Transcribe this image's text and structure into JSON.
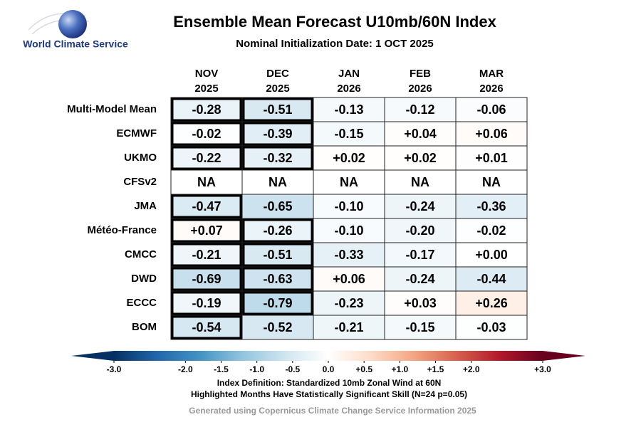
{
  "chart_data": {
    "type": "heatmap",
    "title": "Ensemble Mean Forecast U10mb/60N Index",
    "subtitle": "Nominal Initialization Date: 1 OCT 2025",
    "logo_text": "World Climate Service",
    "columns": [
      {
        "month": "NOV",
        "year": "2025"
      },
      {
        "month": "DEC",
        "year": "2025"
      },
      {
        "month": "JAN",
        "year": "2026"
      },
      {
        "month": "FEB",
        "year": "2026"
      },
      {
        "month": "MAR",
        "year": "2026"
      }
    ],
    "rows": [
      "Multi-Model Mean",
      "ECMWF",
      "UKMO",
      "CFSv2",
      "JMA",
      "Météo-France",
      "CMCC",
      "DWD",
      "ECCC",
      "BOM"
    ],
    "values": [
      [
        -0.28,
        -0.51,
        -0.13,
        -0.12,
        -0.06
      ],
      [
        -0.02,
        -0.39,
        -0.15,
        0.04,
        0.06
      ],
      [
        -0.22,
        -0.32,
        0.02,
        0.02,
        0.01
      ],
      [
        null,
        null,
        null,
        null,
        null
      ],
      [
        -0.47,
        -0.65,
        -0.1,
        -0.24,
        -0.36
      ],
      [
        0.07,
        -0.26,
        -0.1,
        -0.2,
        -0.02
      ],
      [
        -0.21,
        -0.51,
        -0.33,
        -0.17,
        0.0
      ],
      [
        -0.69,
        -0.63,
        0.06,
        -0.24,
        -0.44
      ],
      [
        -0.19,
        -0.79,
        -0.23,
        0.03,
        0.26
      ],
      [
        -0.54,
        -0.52,
        -0.21,
        -0.15,
        -0.03
      ]
    ],
    "value_labels": [
      [
        "-0.28",
        "-0.51",
        "-0.13",
        "-0.12",
        "-0.06"
      ],
      [
        "-0.02",
        "-0.39",
        "-0.15",
        "+0.04",
        "+0.06"
      ],
      [
        "-0.22",
        "-0.32",
        "+0.02",
        "+0.02",
        "+0.01"
      ],
      [
        "NA",
        "NA",
        "NA",
        "NA",
        "NA"
      ],
      [
        "-0.47",
        "-0.65",
        "-0.10",
        "-0.24",
        "-0.36"
      ],
      [
        "+0.07",
        "-0.26",
        "-0.10",
        "-0.20",
        "-0.02"
      ],
      [
        "-0.21",
        "-0.51",
        "-0.33",
        "-0.17",
        "+0.00"
      ],
      [
        "-0.69",
        "-0.63",
        "+0.06",
        "-0.24",
        "-0.44"
      ],
      [
        "-0.19",
        "-0.79",
        "-0.23",
        "+0.03",
        "+0.26"
      ],
      [
        "-0.54",
        "-0.52",
        "-0.21",
        "-0.15",
        "-0.03"
      ]
    ],
    "significant": [
      [
        true,
        true,
        false,
        false,
        false
      ],
      [
        true,
        true,
        false,
        false,
        false
      ],
      [
        true,
        true,
        false,
        false,
        false
      ],
      [
        false,
        false,
        false,
        false,
        false
      ],
      [
        true,
        false,
        false,
        false,
        false
      ],
      [
        true,
        true,
        false,
        false,
        false
      ],
      [
        true,
        true,
        false,
        false,
        false
      ],
      [
        true,
        true,
        false,
        false,
        false
      ],
      [
        true,
        true,
        false,
        false,
        false
      ],
      [
        true,
        false,
        false,
        false,
        false
      ]
    ],
    "colorscale": [
      "#053061",
      "#2166ac",
      "#4393c3",
      "#92c5de",
      "#d1e5f0",
      "#ffffff",
      "#fddbc7",
      "#f4a582",
      "#d6604d",
      "#b2182b",
      "#67001f"
    ],
    "clim": [
      -3,
      3
    ],
    "cticks": [
      {
        "value": -3,
        "label": "-3.0"
      },
      {
        "value": -2,
        "label": "-2.0"
      },
      {
        "value": -1.5,
        "label": "-1.5"
      },
      {
        "value": -1,
        "label": "-1.0"
      },
      {
        "value": -0.5,
        "label": "-0.5"
      },
      {
        "value": 0,
        "label": "0.0"
      },
      {
        "value": 0.5,
        "label": "+0.5"
      },
      {
        "value": 1,
        "label": "+1.0"
      },
      {
        "value": 1.5,
        "label": "+1.5"
      },
      {
        "value": 2,
        "label": "+2.0"
      },
      {
        "value": 3,
        "label": "+3.0"
      }
    ],
    "notes": [
      "Index Definition: Standardized 10mb Zonal Wind at 60N",
      "Highlighted Months Have Statistically Significant Skill (N=24 p=0.05)"
    ],
    "credit": "Generated using Copernicus Climate Change Service Information 2025"
  }
}
